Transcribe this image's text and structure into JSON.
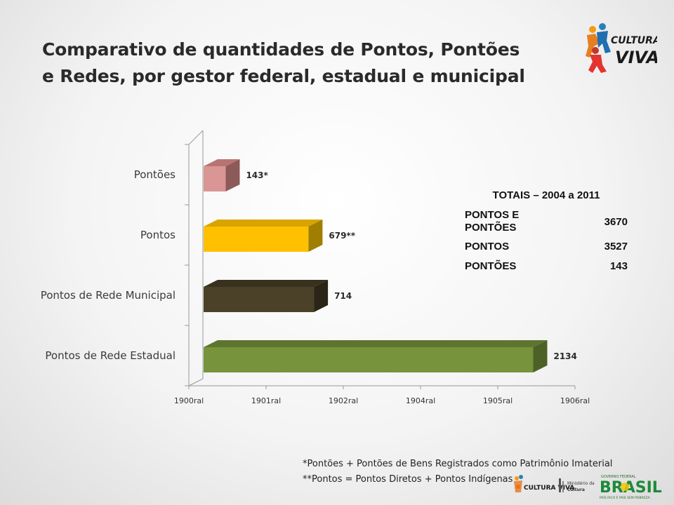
{
  "title_lines": [
    "Comparativo de quantidades de Pontos, Pontões",
    "e Redes, por gestor federal, estadual e municipal"
  ],
  "logo": {
    "line1": "CULTURA",
    "line2": "VIVA"
  },
  "chart_data": {
    "type": "bar",
    "orientation": "horizontal",
    "categories": [
      "Pontões",
      "Pontos",
      "Pontos de Rede Municipal",
      "Pontos de Rede Estadual"
    ],
    "values": [
      143,
      679,
      714,
      2134
    ],
    "data_labels": [
      "143*",
      "679**",
      "714",
      "2134"
    ],
    "colors": [
      "#d99694",
      "#ffc000",
      "#4a4128",
      "#77933c"
    ],
    "side_colors": [
      "#8c5a58",
      "#a07e00",
      "#2a2516",
      "#4d6126"
    ],
    "top_colors": [
      "#b87472",
      "#d9a300",
      "#38311e",
      "#5e7530"
    ],
    "x_tick_labels": [
      "1900ral",
      "1901ral",
      "1902ral",
      "1904ral",
      "1905ral",
      "1906ral"
    ],
    "xlim": [
      0,
      2500
    ],
    "grid": false,
    "legend": "none"
  },
  "totals_table": {
    "title": "TOTAIS – 2004 a 2011",
    "rows": [
      {
        "label": "PONTOS E PONTÕES",
        "value": "3670"
      },
      {
        "label": "PONTOS",
        "value": "3527"
      },
      {
        "label": "PONTÕES",
        "value": "143"
      }
    ]
  },
  "notes": [
    "*Pontões + Pontões de Bens Registrados como Patrimônio Imaterial",
    "**Pontos = Pontos Diretos + Pontos Indígenas"
  ],
  "footer": {
    "logo_small": "CULTURA VIVA",
    "ministry": [
      "Ministério da",
      "Cultura"
    ],
    "brasil": "BRASIL",
    "brasil_top": "GOVERNO FEDERAL",
    "brasil_sub": "PAÍS RICO É PAÍS SEM POBREZA"
  }
}
